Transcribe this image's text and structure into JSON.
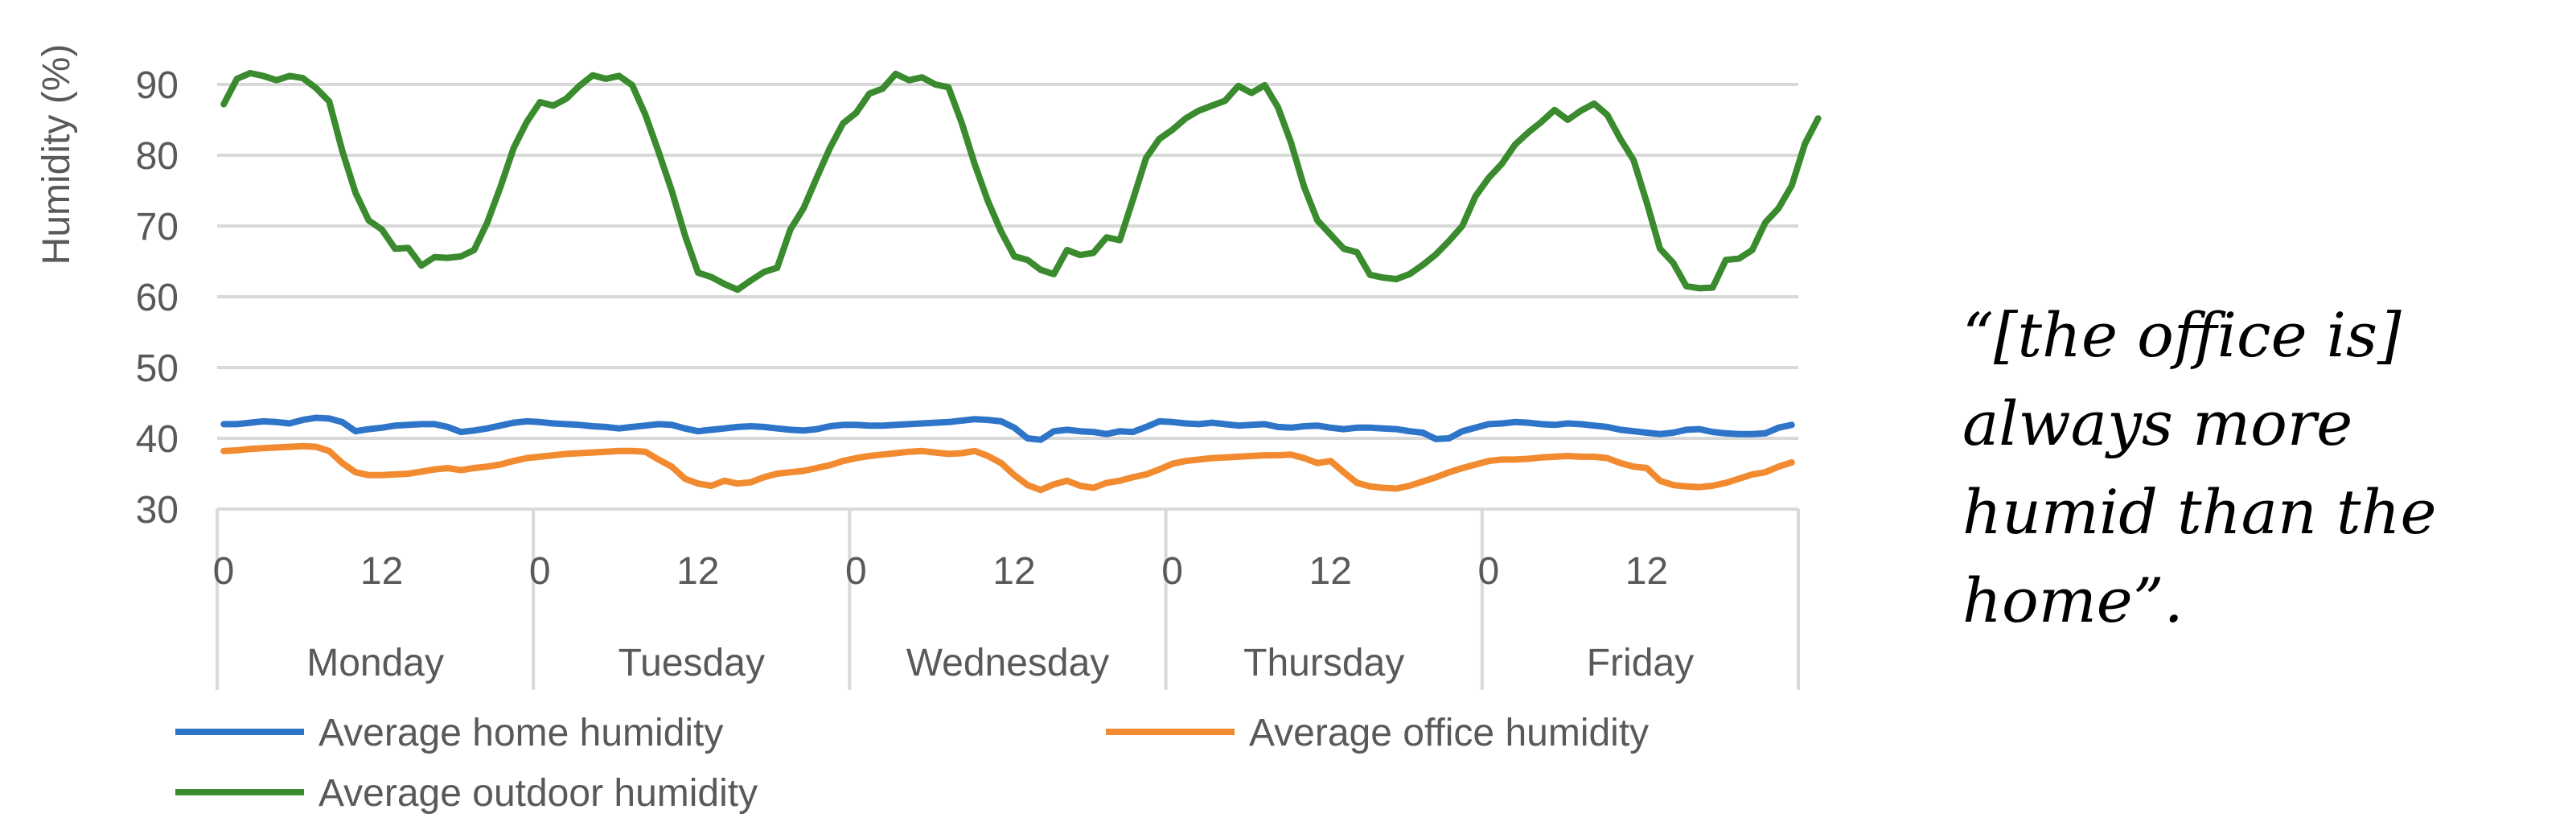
{
  "chart_data": {
    "type": "line",
    "title": "",
    "xlabel": "",
    "ylabel": "Humidity (%)",
    "ylim": [
      30,
      90
    ],
    "yticks": [
      30,
      40,
      50,
      60,
      70,
      80,
      90
    ],
    "hour_ticks": [
      "0",
      "12"
    ],
    "days": [
      "Monday",
      "Tuesday",
      "Wednesday",
      "Thursday",
      "Friday"
    ],
    "hours_per_day": 24,
    "grid": true,
    "legend_position": "bottom",
    "series": [
      {
        "name": "Average home humidity",
        "color": "#2E75C9",
        "values": [
          42,
          42,
          42.2,
          42.4,
          42.3,
          42.1,
          42.6,
          42.9,
          42.8,
          42.3,
          41,
          41.3,
          41.5,
          41.8,
          41.9,
          42,
          42,
          41.6,
          40.9,
          41.1,
          41.4,
          41.8,
          42.2,
          42.4,
          42.3,
          42.1,
          42,
          41.9,
          41.7,
          41.6,
          41.4,
          41.6,
          41.8,
          42,
          41.9,
          41.4,
          41,
          41.2,
          41.4,
          41.6,
          41.7,
          41.6,
          41.4,
          41.2,
          41.1,
          41.3,
          41.7,
          41.9,
          41.9,
          41.8,
          41.8,
          41.9,
          42,
          42.1,
          42.2,
          42.3,
          42.5,
          42.7,
          42.6,
          42.4,
          41.5,
          40,
          39.8,
          41,
          41.2,
          41,
          40.9,
          40.6,
          41,
          40.9,
          41.6,
          42.4,
          42.3,
          42.1,
          42,
          42.2,
          42,
          41.8,
          41.9,
          42,
          41.6,
          41.5,
          41.7,
          41.8,
          41.5,
          41.3,
          41.5,
          41.5,
          41.4,
          41.3,
          41,
          40.8,
          39.9,
          40,
          41,
          41.5,
          42,
          42.1,
          42.3,
          42.2,
          42,
          41.9,
          42.1,
          42,
          41.8,
          41.6,
          41.2,
          41,
          40.8,
          40.6,
          40.8,
          41.2,
          41.3,
          40.9,
          40.7,
          40.6,
          40.6,
          40.7,
          41.5,
          41.9
        ]
      },
      {
        "name": "Average office humidity",
        "color": "#F28A30",
        "values": [
          38.2,
          38.3,
          38.5,
          38.6,
          38.7,
          38.8,
          38.9,
          38.8,
          38.2,
          36.5,
          35.2,
          34.8,
          34.8,
          34.9,
          35,
          35.3,
          35.6,
          35.8,
          35.5,
          35.8,
          36,
          36.3,
          36.8,
          37.2,
          37.4,
          37.6,
          37.8,
          37.9,
          38,
          38.1,
          38.2,
          38.2,
          38.1,
          37,
          36,
          34.3,
          33.6,
          33.3,
          34,
          33.6,
          33.8,
          34.5,
          35,
          35.2,
          35.4,
          35.8,
          36.2,
          36.8,
          37.2,
          37.5,
          37.7,
          37.9,
          38.1,
          38.2,
          38,
          37.8,
          37.9,
          38.2,
          37.5,
          36.5,
          34.8,
          33.4,
          32.7,
          33.5,
          34,
          33.3,
          33,
          33.7,
          34,
          34.5,
          34.9,
          35.6,
          36.4,
          36.8,
          37,
          37.2,
          37.3,
          37.4,
          37.5,
          37.6,
          37.6,
          37.7,
          37.2,
          36.5,
          36.8,
          35.2,
          33.7,
          33.2,
          33,
          32.9,
          33.3,
          33.9,
          34.5,
          35.2,
          35.8,
          36.3,
          36.8,
          37,
          37,
          37.1,
          37.3,
          37.4,
          37.5,
          37.4,
          37.4,
          37.2,
          36.5,
          36,
          35.8,
          34,
          33.4,
          33.2,
          33.1,
          33.3,
          33.7,
          34.3,
          34.9,
          35.2,
          36,
          36.6
        ]
      },
      {
        "name": "Average outdoor humidity",
        "color": "#3A8A2E",
        "values": [
          87.2,
          90.8,
          91.6,
          91.2,
          90.6,
          91.2,
          90.9,
          89.5,
          87.6,
          80.6,
          74.7,
          70.8,
          69.5,
          66.8,
          66.9,
          64.4,
          65.6,
          65.5,
          65.7,
          66.6,
          70.5,
          75.5,
          81,
          84.7,
          87.5,
          87,
          88,
          89.8,
          91.3,
          90.8,
          91.2,
          89.9,
          85.7,
          80.5,
          75,
          68.7,
          63.4,
          62.8,
          61.8,
          61,
          62.3,
          63.5,
          64.1,
          69.5,
          72.5,
          76.8,
          81,
          84.5,
          86,
          88.7,
          89.4,
          91.5,
          90.6,
          91,
          90,
          89.6,
          84.6,
          78.7,
          73.5,
          69.2,
          65.7,
          65.2,
          63.8,
          63.2,
          66.6,
          65.9,
          66.2,
          68.4,
          68,
          73.7,
          79.6,
          82.3,
          83.6,
          85.2,
          86.3,
          87,
          87.7,
          89.8,
          88.8,
          89.9,
          86.8,
          81.8,
          75.5,
          70.8,
          68.8,
          66.8,
          66.3,
          63.1,
          62.7,
          62.5,
          63.2,
          64.5,
          66,
          67.9,
          70,
          74.2,
          76.8,
          78.8,
          81.5,
          83.2,
          84.7,
          86.4,
          85,
          86.3,
          87.3,
          85.7,
          82.3,
          79.3,
          73.3,
          66.8,
          64.8,
          61.5,
          61.2,
          61.3,
          65.2,
          65.4,
          66.6,
          70.5,
          72.5,
          75.7,
          81.6,
          85.2
        ]
      }
    ]
  },
  "annotation": {
    "quote": "“[the office is] always more humid than the home”."
  }
}
